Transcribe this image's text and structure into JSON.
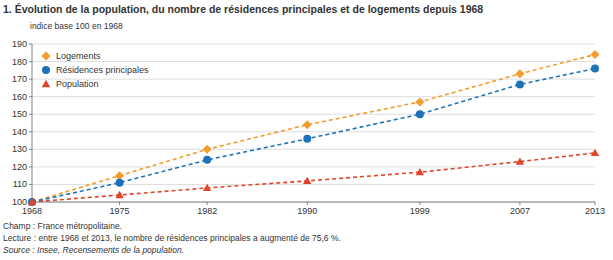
{
  "chart_data": {
    "type": "line",
    "title": "1. Évolution de la population, du nombre de résidences principales et de logements depuis 1968",
    "subtitle": "indice base 100 en 1968",
    "x": [
      1968,
      1975,
      1982,
      1990,
      1999,
      2007,
      2013
    ],
    "xlim": [
      1968,
      2013
    ],
    "xticks": [
      1968,
      1975,
      1982,
      1990,
      1999,
      2007,
      2013
    ],
    "ylim": [
      100,
      190
    ],
    "yticks": [
      100,
      110,
      120,
      130,
      140,
      150,
      160,
      170,
      180,
      190
    ],
    "grid": true,
    "legend": "upper left",
    "series": [
      {
        "name": "Logements",
        "color": "#f39c2c",
        "marker": "diamond",
        "line_style": "dashed",
        "values": [
          100,
          115,
          130,
          144,
          157,
          173,
          184
        ]
      },
      {
        "name": "Résidences principales",
        "color": "#1e73b8",
        "marker": "circle",
        "line_style": "dashed",
        "values": [
          100,
          111,
          124,
          136,
          150,
          167,
          176
        ]
      },
      {
        "name": "Population",
        "color": "#e0442a",
        "marker": "triangle",
        "line_style": "dashed",
        "values": [
          100,
          104,
          108,
          112,
          117,
          123,
          128
        ]
      }
    ],
    "annotations": [
      "Champ : France métropolitaine.",
      "Lecture : entre 1968 et 2013, le nombre de résidences principales a augmenté de 75,6 %.",
      "Source : Insee, Recensements de la population."
    ]
  }
}
